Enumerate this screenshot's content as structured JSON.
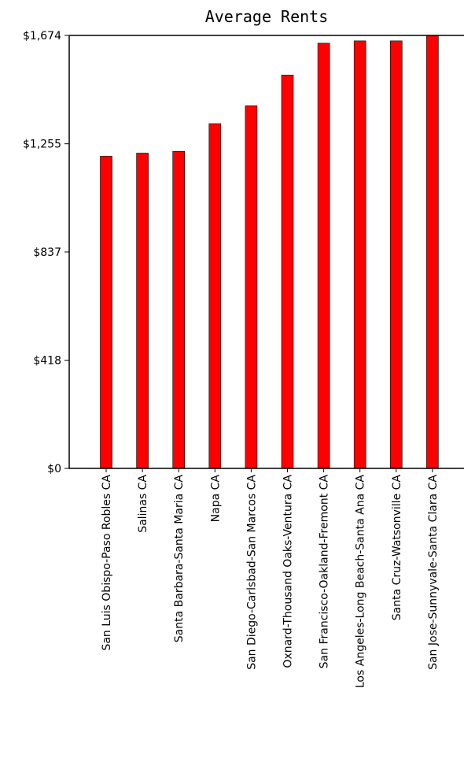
{
  "chart_data": {
    "type": "bar",
    "title": "Average Rents",
    "xlabel": "",
    "ylabel": "",
    "categories": [
      "San Luis Obispo-Paso Robles CA",
      "Salinas CA",
      "Santa Barbara-Santa Maria CA",
      "Napa CA",
      "San Diego-Carlsbad-San Marcos CA",
      "Oxnard-Thousand Oaks-Ventura CA",
      "San Francisco-Oakland-Fremont CA",
      "Los Angeles-Long Beach-Santa Ana CA",
      "Santa Cruz-Watsonville CA",
      "San Jose-Sunnyvale-Santa Clara CA"
    ],
    "values": [
      1207,
      1219,
      1226,
      1333,
      1402,
      1521,
      1644,
      1653,
      1653,
      1674
    ],
    "ylim": [
      0,
      1674
    ],
    "yticks": [
      0,
      418,
      837,
      1255,
      1674
    ],
    "ytick_labels": [
      "$0",
      "$418",
      "$837",
      "$1,255",
      "$1,674"
    ],
    "bar_color": "#ff0000",
    "grid": false,
    "legend": "none"
  }
}
